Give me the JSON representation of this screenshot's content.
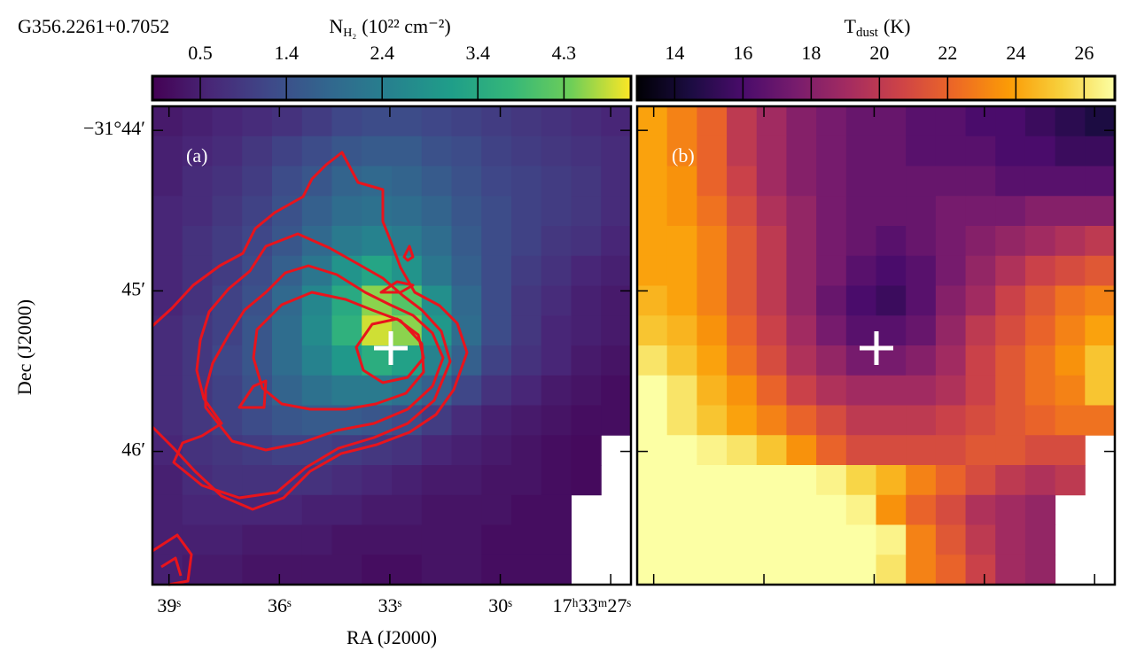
{
  "chart_data": [
    {
      "type": "heatmap",
      "title": "G356.2261+0.7052",
      "annotation": "(a)",
      "xlabel": "RA (J2000)",
      "ylabel": "Dec (J2000)",
      "colormap": "viridis",
      "xlim": [
        39.45,
        26.45
      ],
      "ylim": [
        43.85,
        46.83
      ],
      "xticks": [
        {
          "value": 39,
          "label": "39ˢ"
        },
        {
          "value": 36,
          "label": "36ˢ"
        },
        {
          "value": 33,
          "label": "33ˢ"
        },
        {
          "value": 30,
          "label": "30ˢ"
        },
        {
          "value": 27,
          "label": "17ʰ33ᵐ27ˢ"
        }
      ],
      "yticks": [
        {
          "value": 44,
          "label": "−31°44′"
        },
        {
          "value": 45,
          "label": "45′"
        },
        {
          "value": 46,
          "label": "46′"
        }
      ],
      "colorbar": {
        "label": [
          "N",
          "H₂",
          "(10²² cm⁻²)"
        ],
        "clim": [
          0,
          5
        ],
        "ticks": [
          0.5,
          1.4,
          2.4,
          3.4,
          4.3
        ]
      },
      "values": [
        [
          0.4,
          0.5,
          0.6,
          0.7,
          0.8,
          1.0,
          1.2,
          1.3,
          1.3,
          1.2,
          1.1,
          1.0,
          0.9,
          0.8,
          0.7,
          0.6
        ],
        [
          0.5,
          0.6,
          0.7,
          0.9,
          1.1,
          1.3,
          1.5,
          1.6,
          1.6,
          1.4,
          1.3,
          1.1,
          1.0,
          0.9,
          0.8,
          0.7
        ],
        [
          0.5,
          0.7,
          0.8,
          1.0,
          1.3,
          1.5,
          1.8,
          1.9,
          1.8,
          1.6,
          1.4,
          1.2,
          1.1,
          1.0,
          0.9,
          0.7
        ],
        [
          0.6,
          0.7,
          0.9,
          1.1,
          1.4,
          1.7,
          2.0,
          2.1,
          2.0,
          1.8,
          1.5,
          1.3,
          1.1,
          1.0,
          0.9,
          0.7
        ],
        [
          0.6,
          0.8,
          1.0,
          1.2,
          1.5,
          1.9,
          2.3,
          2.5,
          2.3,
          2.0,
          1.6,
          1.3,
          1.1,
          0.9,
          0.8,
          0.6
        ],
        [
          0.6,
          0.8,
          1.0,
          1.3,
          1.7,
          2.2,
          2.9,
          3.3,
          2.9,
          2.2,
          1.7,
          1.3,
          1.0,
          0.8,
          0.6,
          0.5
        ],
        [
          0.6,
          0.8,
          1.1,
          1.4,
          1.9,
          2.6,
          3.4,
          4.5,
          4.1,
          2.8,
          1.9,
          1.3,
          0.9,
          0.7,
          0.5,
          0.4
        ],
        [
          0.7,
          0.9,
          1.1,
          1.5,
          2.0,
          2.7,
          3.6,
          4.8,
          4.5,
          3.0,
          2.0,
          1.3,
          0.9,
          0.6,
          0.5,
          0.4
        ],
        [
          0.7,
          0.9,
          1.2,
          1.5,
          2.0,
          2.5,
          3.0,
          3.5,
          3.2,
          2.5,
          1.7,
          1.1,
          0.8,
          0.6,
          0.4,
          0.3
        ],
        [
          0.7,
          0.9,
          1.1,
          1.4,
          1.8,
          2.1,
          2.3,
          2.3,
          2.1,
          1.7,
          1.2,
          0.8,
          0.6,
          0.4,
          0.3,
          0.2
        ],
        [
          0.7,
          0.9,
          1.1,
          1.3,
          1.5,
          1.6,
          1.6,
          1.5,
          1.3,
          1.0,
          0.7,
          0.5,
          0.4,
          0.3,
          0.2,
          0.2
        ],
        [
          0.6,
          0.8,
          0.9,
          1.0,
          1.1,
          1.1,
          1.0,
          0.9,
          0.8,
          0.6,
          0.5,
          0.4,
          0.3,
          0.2,
          0.15,
          null
        ],
        [
          0.5,
          0.7,
          0.8,
          0.8,
          0.8,
          0.8,
          0.7,
          0.6,
          0.5,
          0.4,
          0.4,
          0.3,
          0.3,
          0.2,
          0.15,
          null
        ],
        [
          0.5,
          0.6,
          0.6,
          0.6,
          0.6,
          0.5,
          0.5,
          0.4,
          0.4,
          0.3,
          0.3,
          0.3,
          0.2,
          0.2,
          null,
          null
        ],
        [
          0.5,
          0.5,
          0.5,
          0.4,
          0.4,
          0.4,
          0.3,
          0.3,
          0.3,
          0.3,
          0.3,
          0.2,
          0.2,
          0.2,
          null,
          null
        ],
        [
          0.5,
          0.4,
          0.4,
          0.3,
          0.3,
          0.3,
          0.3,
          0.2,
          0.2,
          0.3,
          0.3,
          0.2,
          0.2,
          0.2,
          null,
          null
        ]
      ]
    },
    {
      "type": "heatmap",
      "annotation": "(b)",
      "colormap": "inferno",
      "colorbar": {
        "label": [
          "T",
          "dust",
          "(K)"
        ],
        "clim": [
          12.9,
          26.9
        ],
        "ticks": [
          14,
          16,
          18,
          20,
          22,
          24,
          26
        ]
      },
      "values": [
        [
          24,
          23,
          22,
          20,
          19,
          18,
          17.5,
          17,
          17,
          16.5,
          16.5,
          16,
          16,
          15.5,
          15,
          14.5
        ],
        [
          24,
          23,
          22,
          20,
          19,
          18,
          17.5,
          17,
          17,
          16.5,
          16.5,
          16.5,
          16,
          16,
          15.5,
          15.5
        ],
        [
          24,
          23.5,
          22,
          20.5,
          19,
          18,
          17.5,
          17,
          17,
          17,
          17,
          17,
          16.5,
          16.5,
          16.5,
          16.5
        ],
        [
          24,
          23.5,
          22.5,
          21,
          19.5,
          18.5,
          17.5,
          17,
          17,
          17,
          17.5,
          17.5,
          17.5,
          18,
          18,
          18
        ],
        [
          24,
          24,
          23,
          21.5,
          20,
          18.5,
          17.5,
          17,
          16.5,
          17,
          17.5,
          18,
          18.5,
          19,
          19.5,
          20
        ],
        [
          24,
          24,
          23,
          21.5,
          20,
          18.5,
          17.5,
          16.5,
          16,
          16.5,
          17.5,
          18.5,
          19.5,
          20.5,
          21,
          21.5
        ],
        [
          24.5,
          24,
          23,
          21.5,
          20,
          18.5,
          17,
          16,
          15.5,
          16.5,
          18,
          19,
          20.5,
          21.5,
          22.5,
          23
        ],
        [
          25,
          24.5,
          23.5,
          22,
          20.5,
          19,
          17.5,
          16.5,
          16.5,
          17,
          18.5,
          20,
          21,
          22,
          23,
          24
        ],
        [
          26,
          25,
          24,
          22.5,
          21,
          19.5,
          18.5,
          17.5,
          17.5,
          18,
          19,
          20.5,
          21.5,
          22.5,
          23.5,
          25
        ],
        [
          27,
          26,
          24.5,
          23.5,
          22,
          20.5,
          19.5,
          19,
          19,
          19,
          19.5,
          20.5,
          21.5,
          22.5,
          23,
          25
        ],
        [
          27,
          26,
          25,
          24,
          23,
          22,
          21,
          20,
          20,
          20,
          20.5,
          21,
          21.5,
          22,
          22.5,
          22.5
        ],
        [
          27,
          27,
          26.5,
          26,
          25,
          23.5,
          22,
          21,
          21,
          21,
          21,
          21.5,
          21.5,
          21,
          21,
          null
        ],
        [
          27,
          27,
          27,
          27,
          27,
          27,
          26.5,
          25.5,
          24.5,
          23,
          22,
          21,
          20,
          19.5,
          20,
          null
        ],
        [
          27,
          27,
          27,
          27,
          27,
          27,
          27,
          26.5,
          23.5,
          22,
          21,
          19.5,
          19,
          18.5,
          null,
          null
        ],
        [
          27,
          27,
          27,
          27,
          27,
          27,
          27,
          27,
          26.5,
          23,
          21.5,
          20,
          19,
          18.5,
          null,
          null
        ],
        [
          27,
          27,
          27,
          27,
          27,
          27,
          27,
          27,
          26,
          23,
          22,
          20.5,
          19,
          18.5,
          null,
          null
        ]
      ]
    }
  ]
}
